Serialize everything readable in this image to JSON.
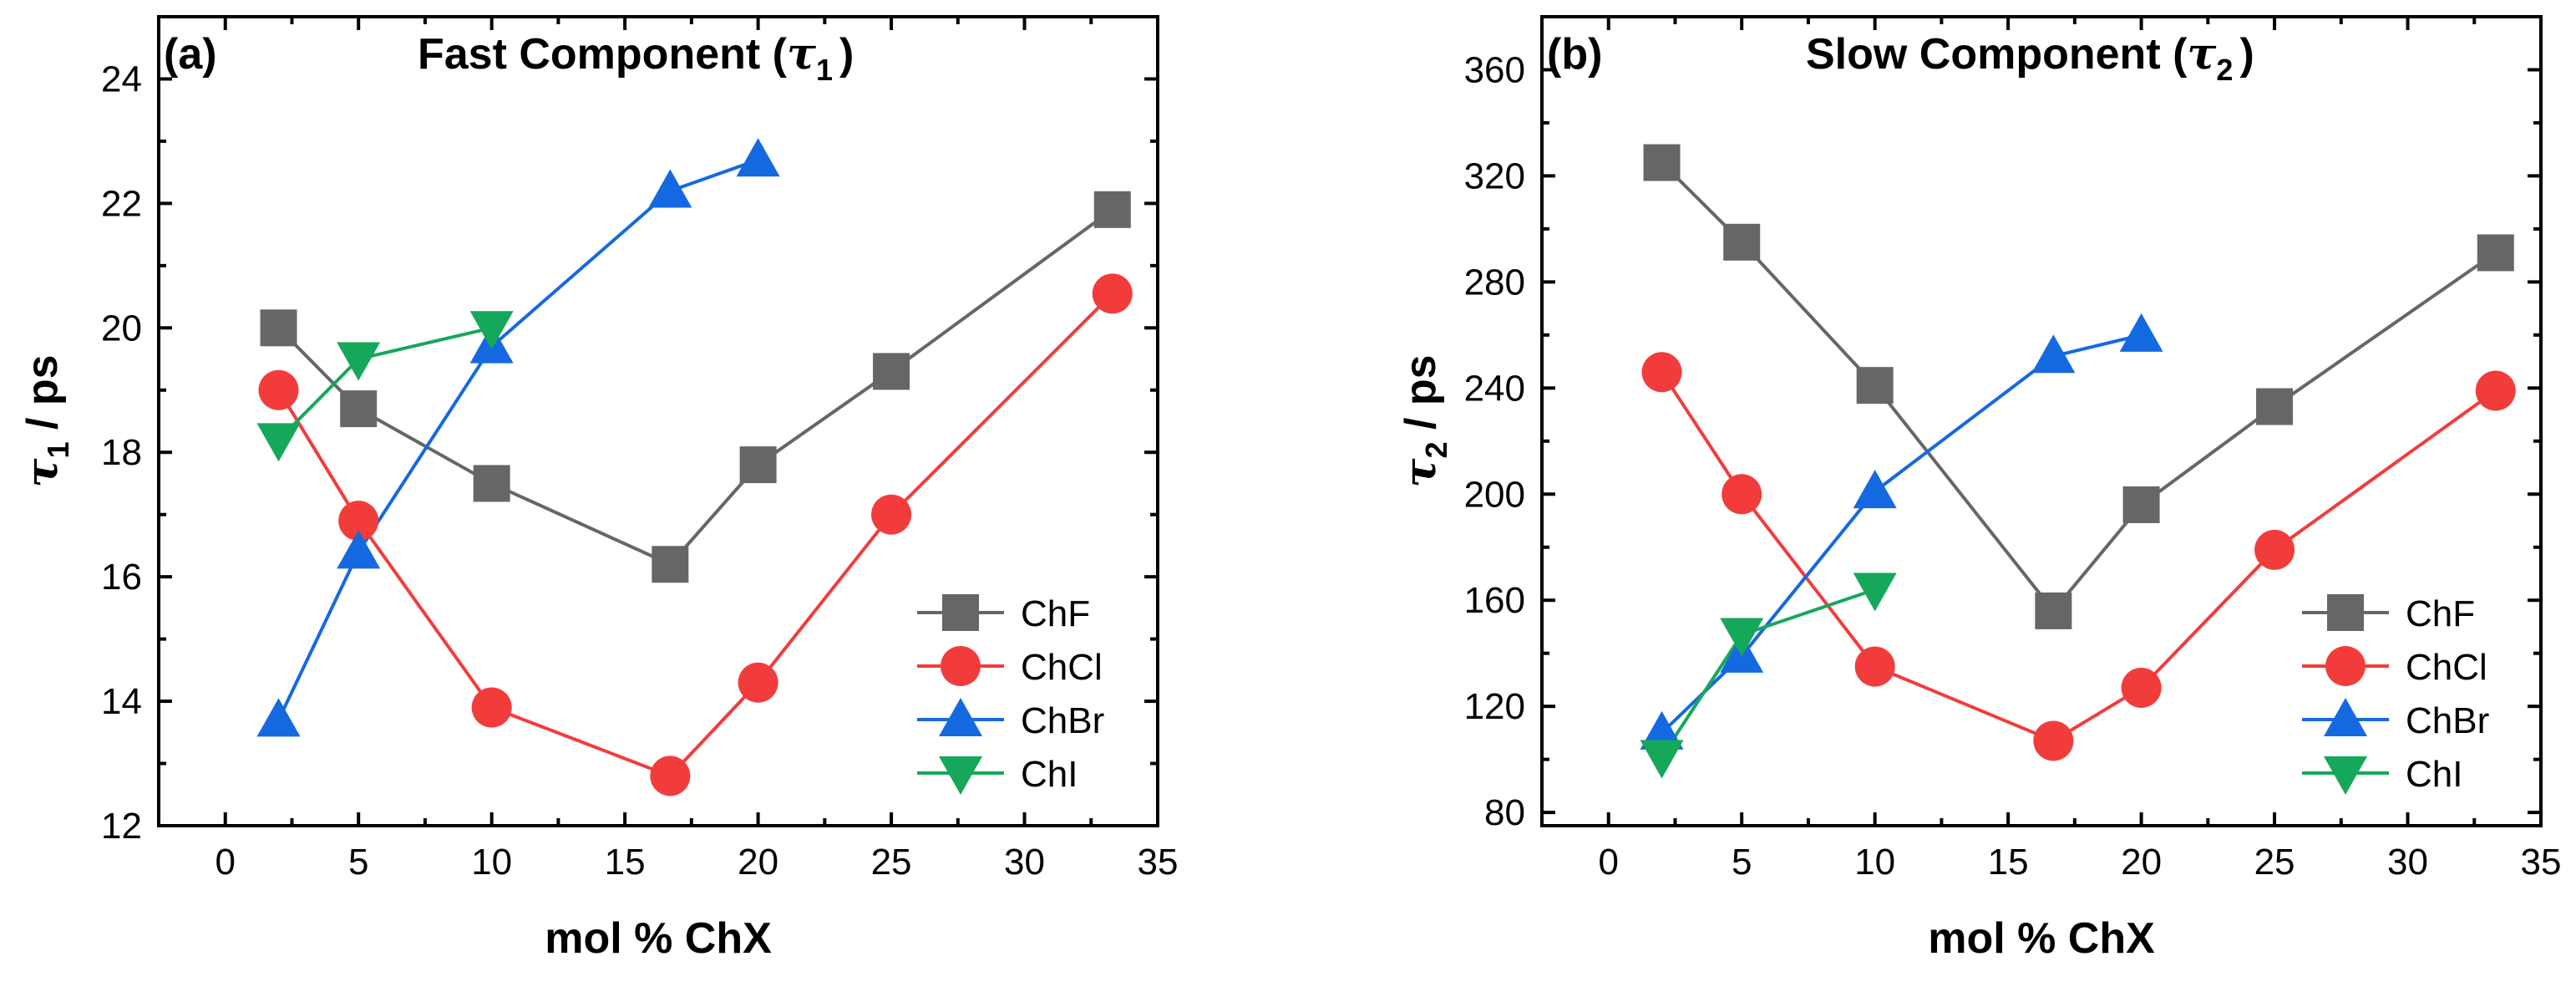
{
  "chart_data": [
    {
      "type": "line",
      "panel_label": "(a)",
      "title_prefix": "Fast Component (",
      "title_symbol": "τ",
      "title_subscript": "1",
      "title_suffix": ")",
      "xlabel": "mol % ChX",
      "ylabel_symbol": "τ",
      "ylabel_subscript": "1",
      "ylabel_suffix": " / ps",
      "xlim": [
        -2.5,
        35
      ],
      "ylim": [
        12,
        25
      ],
      "xticks": [
        0,
        5,
        10,
        15,
        20,
        25,
        30,
        35
      ],
      "yticks": [
        12,
        14,
        16,
        18,
        20,
        22,
        24
      ],
      "legend_position": "bottom-right",
      "series": [
        {
          "name": "ChF",
          "marker": "square",
          "color": "#666666",
          "x": [
            2,
            5,
            10,
            16.7,
            20,
            25,
            33.3
          ],
          "y": [
            20.0,
            18.7,
            17.5,
            16.2,
            17.8,
            19.3,
            21.9
          ]
        },
        {
          "name": "ChCl",
          "marker": "circle",
          "color": "#f23c3c",
          "x": [
            2,
            5,
            10,
            16.7,
            20,
            25,
            33.3
          ],
          "y": [
            19.0,
            16.9,
            13.9,
            12.8,
            14.3,
            17.0,
            20.55
          ]
        },
        {
          "name": "ChBr",
          "marker": "triangle-up",
          "color": "#1569e0",
          "x": [
            2,
            5,
            10,
            16.7,
            20
          ],
          "y": [
            13.7,
            16.4,
            19.7,
            22.2,
            22.7
          ]
        },
        {
          "name": "ChI",
          "marker": "triangle-down",
          "color": "#16a85a",
          "x": [
            2,
            5,
            10
          ],
          "y": [
            18.2,
            19.5,
            20.0
          ]
        }
      ]
    },
    {
      "type": "line",
      "panel_label": "(b)",
      "title_prefix": "Slow Component (",
      "title_symbol": "τ",
      "title_subscript": "2",
      "title_suffix": ")",
      "xlabel": "mol % ChX",
      "ylabel_symbol": "τ",
      "ylabel_subscript": "2",
      "ylabel_suffix": " / ps",
      "xlim": [
        -2.5,
        35
      ],
      "ylim": [
        75,
        380
      ],
      "xticks": [
        0,
        5,
        10,
        15,
        20,
        25,
        30,
        35
      ],
      "yticks": [
        80,
        120,
        160,
        200,
        240,
        280,
        320,
        360
      ],
      "legend_position": "bottom-right",
      "series": [
        {
          "name": "ChF",
          "marker": "square",
          "color": "#666666",
          "x": [
            2,
            5,
            10,
            16.7,
            20,
            25,
            33.3
          ],
          "y": [
            325,
            295,
            241,
            156,
            196,
            233,
            291
          ]
        },
        {
          "name": "ChCl",
          "marker": "circle",
          "color": "#f23c3c",
          "x": [
            2,
            5,
            10,
            16.7,
            20,
            25,
            33.3
          ],
          "y": [
            246,
            200,
            135,
            107,
            127,
            179,
            239
          ]
        },
        {
          "name": "ChBr",
          "marker": "triangle-up",
          "color": "#1569e0",
          "x": [
            2,
            5,
            10,
            16.7,
            20
          ],
          "y": [
            110,
            139,
            201,
            252,
            260
          ]
        },
        {
          "name": "ChI",
          "marker": "triangle-down",
          "color": "#16a85a",
          "x": [
            2,
            5,
            10
          ],
          "y": [
            101,
            147,
            164
          ]
        }
      ]
    }
  ]
}
